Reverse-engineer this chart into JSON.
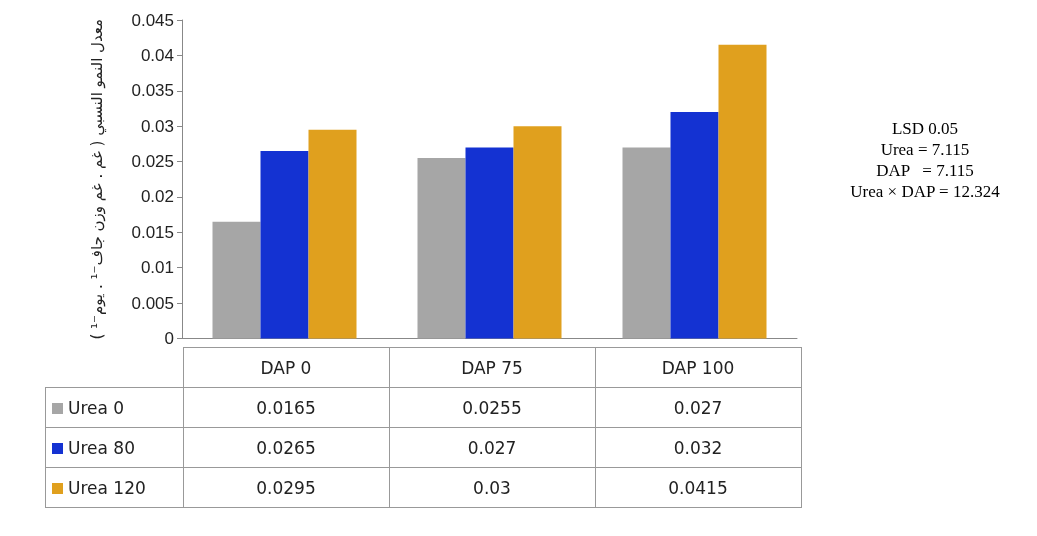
{
  "chart_data": {
    "type": "bar",
    "ylabel": "معدل النمو النسبي ( غم . غم وزن جاف⁻¹ . يوم⁻¹ )",
    "categories": [
      "DAP 0",
      "DAP 75",
      "DAP 100"
    ],
    "series": [
      {
        "name": "Urea 0",
        "color": "#a6a6a6",
        "values": [
          0.0165,
          0.0255,
          0.027
        ]
      },
      {
        "name": "Urea 80",
        "color": "#1432d2",
        "values": [
          0.0265,
          0.027,
          0.032
        ]
      },
      {
        "name": "Urea 120",
        "color": "#e0a01e",
        "values": [
          0.0295,
          0.03,
          0.0415
        ]
      }
    ],
    "ylim": [
      0,
      0.045
    ],
    "yticks": [
      0,
      0.005,
      0.01,
      0.015,
      0.02,
      0.025,
      0.03,
      0.035,
      0.04,
      0.045
    ],
    "grid": false,
    "legend": "bottom left",
    "data_labels": true,
    "annotations": [
      "LSD 0.05",
      "Urea = 7.115",
      "DAP   = 7.115",
      "Urea × DAP = 12.324"
    ]
  }
}
